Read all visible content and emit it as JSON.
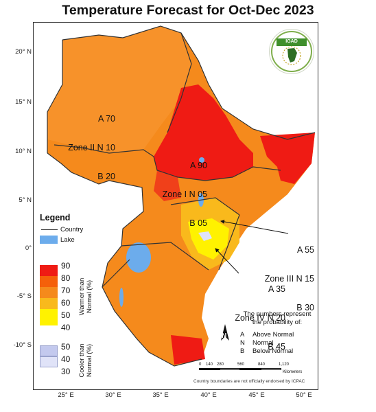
{
  "title": "Temperature Forecast for Oct-Dec 2023",
  "latitude_labels": [
    "20° N",
    "15° N",
    "10° N",
    "5° N",
    "0°",
    "-5° S",
    "-10° S"
  ],
  "longitude_labels": [
    "25° E",
    "30° E",
    "35° E",
    "40° E",
    "45° E",
    "50° E"
  ],
  "logo": {
    "text": "IGAD"
  },
  "zones": [
    {
      "name": "Zone II",
      "A": "70",
      "N": "10",
      "B": "20"
    },
    {
      "name": "Zone I",
      "A": "90",
      "N": "05",
      "B": "05"
    },
    {
      "name": "Zone III",
      "A": "55",
      "N": "15",
      "B": "30"
    },
    {
      "name": "Zone IV",
      "A": "35",
      "N": "20",
      "B": "45"
    }
  ],
  "legend": {
    "title": "Legend",
    "country_label": "Country",
    "lake_label": "Lake",
    "warm_label": "Warmer than\nNormal (%)",
    "cool_label": "Cooler than\nNormal (%)",
    "warm_values": [
      "90",
      "80",
      "70",
      "60",
      "50",
      "40"
    ],
    "cool_values": [
      "50",
      "40",
      "30"
    ],
    "warm_colors": [
      "#ef1b14",
      "#f5600a",
      "#f58a1c",
      "#f9b91c",
      "#fff200"
    ],
    "cool_colors": [
      "#c3c9ee",
      "#e0e3f8"
    ],
    "lake_color": "#6cacec"
  },
  "probability_note": {
    "heading": "The numbers represent the probability of:",
    "items": [
      {
        "key": "A",
        "label": "Above Normal"
      },
      {
        "key": "N",
        "label": "Normal"
      },
      {
        "key": "B",
        "label": "Below Normal"
      }
    ]
  },
  "scale_bar": {
    "ticks": [
      "0",
      "140",
      "280",
      "560",
      "840",
      "1,120"
    ],
    "unit": "Kilometers"
  },
  "north_arrow_label": "N",
  "disclaimer": "Country boundaries are not officially endorsed by ICPAC"
}
